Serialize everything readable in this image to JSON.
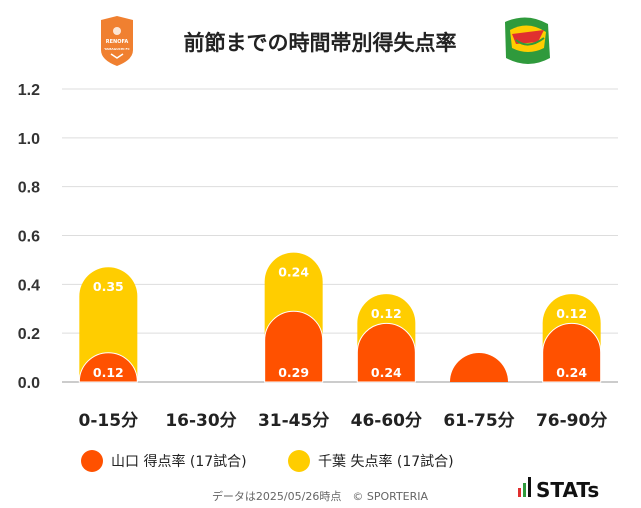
{
  "header": {
    "title": "前節までの時間帯別得失点率",
    "home_logo_text": "RENOFA",
    "home_logo_sub": "YAMAGUCHI FC"
  },
  "footer": {
    "note": "データは2025/05/26時点　© SPORTERIA",
    "brand": "STATs"
  },
  "colors": {
    "home": "#ff5100",
    "away": "#ffcd00",
    "home_logo": "#f08030",
    "away_logo": "#2f9a3c"
  },
  "chart_data": {
    "type": "bar",
    "stacked": true,
    "categories": [
      "0-15分",
      "16-30分",
      "31-45分",
      "46-60分",
      "61-75分",
      "76-90分"
    ],
    "series": [
      {
        "name": "山口 得点率 (17試合)",
        "values": [
          0.12,
          0,
          0.29,
          0.24,
          0.06,
          0.24
        ],
        "labels": [
          "0.12",
          "",
          "0.29",
          "0.24",
          "",
          "0.24"
        ]
      },
      {
        "name": "千葉 失点率 (17試合)",
        "values": [
          0.35,
          0,
          0.24,
          0.12,
          0,
          0.12
        ],
        "labels": [
          "0.35",
          "",
          "0.24",
          "0.12",
          "",
          "0.12"
        ]
      }
    ],
    "yticks": [
      "0.0",
      "0.2",
      "0.4",
      "0.6",
      "0.8",
      "1.0",
      "1.2"
    ],
    "ylim": [
      0,
      1.2
    ],
    "grid": true,
    "legend": "bottom"
  }
}
